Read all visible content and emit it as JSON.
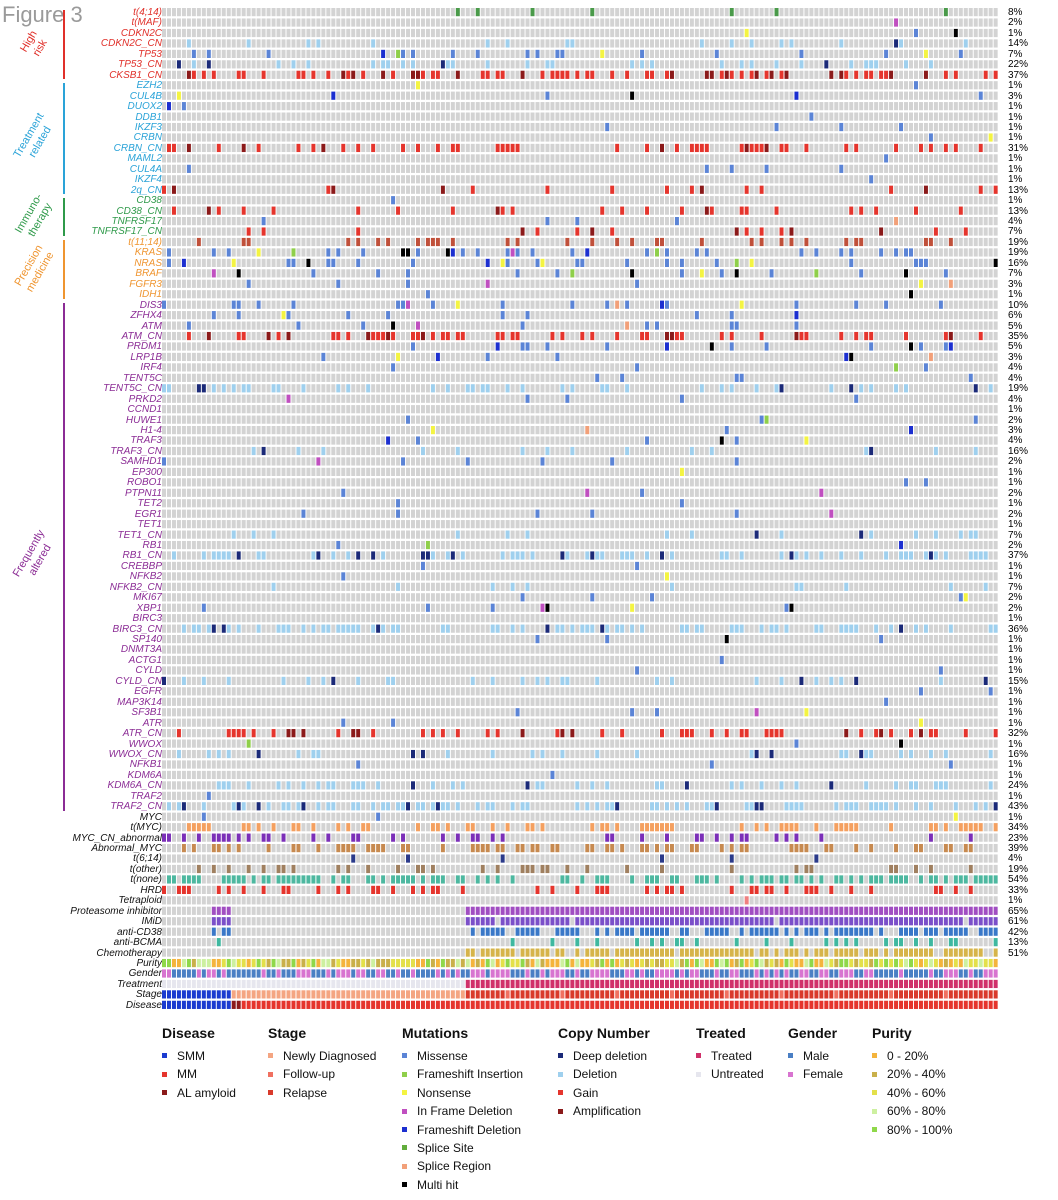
{
  "figure_title": "Figure 3",
  "colors": {
    "empty": "#d3d3d3",
    "missense": "#5b84d6",
    "frameshift_insertion": "#8fcf4a",
    "nonsense": "#f4f442",
    "in_frame_deletion": "#c04fc0",
    "frameshift_deletion": "#1c2fd0",
    "splice_site": "#62ad3c",
    "splice_region": "#f2a079",
    "multi_hit": "#000000",
    "deep_deletion": "#1b2a78",
    "deletion": "#9fd0ee",
    "gain": "#e5352d",
    "amplification": "#8b1a1a",
    "high_risk": "#e0302a",
    "treatment_related": "#2aa3d8",
    "immunotherapy": "#2f9a4a",
    "precision_medicine": "#ef9530",
    "frequently_altered": "#8b2c95",
    "other": "#111111"
  },
  "groups": [
    {
      "key": "high_risk",
      "label": "High risk"
    },
    {
      "key": "treatment_related",
      "label": "Treatment related"
    },
    {
      "key": "immunotherapy",
      "label": "Immuno- therapy"
    },
    {
      "key": "precision_medicine",
      "label": "Precision medicine"
    },
    {
      "key": "frequently_altered",
      "label": "Frequently altered"
    }
  ],
  "rows": [
    {
      "label": "t(4;14)",
      "pct": "8%",
      "group": "high_risk"
    },
    {
      "label": "t(MAF)",
      "pct": "2%",
      "group": "high_risk"
    },
    {
      "label": "CDKN2C",
      "pct": "1%",
      "group": "high_risk"
    },
    {
      "label": "CDKN2C_CN",
      "pct": "14%",
      "group": "high_risk"
    },
    {
      "label": "TP53",
      "pct": "7%",
      "group": "high_risk"
    },
    {
      "label": "TP53_CN",
      "pct": "22%",
      "group": "high_risk"
    },
    {
      "label": "CKSB1_CN",
      "pct": "37%",
      "group": "high_risk"
    },
    {
      "label": "EZH2",
      "pct": "1%",
      "group": "treatment_related"
    },
    {
      "label": "CUL4B",
      "pct": "3%",
      "group": "treatment_related"
    },
    {
      "label": "DUOX2",
      "pct": "1%",
      "group": "treatment_related"
    },
    {
      "label": "DDB1",
      "pct": "1%",
      "group": "treatment_related"
    },
    {
      "label": "IKZF3",
      "pct": "1%",
      "group": "treatment_related"
    },
    {
      "label": "CRBN",
      "pct": "1%",
      "group": "treatment_related"
    },
    {
      "label": "CRBN_CN",
      "pct": "31%",
      "group": "treatment_related"
    },
    {
      "label": "MAML2",
      "pct": "1%",
      "group": "treatment_related"
    },
    {
      "label": "CUL4A",
      "pct": "1%",
      "group": "treatment_related"
    },
    {
      "label": "IKZF4",
      "pct": "1%",
      "group": "treatment_related"
    },
    {
      "label": "2q_CN",
      "pct": "13%",
      "group": "treatment_related"
    },
    {
      "label": "CD38",
      "pct": "1%",
      "group": "immunotherapy"
    },
    {
      "label": "CD38_CN",
      "pct": "13%",
      "group": "immunotherapy"
    },
    {
      "label": "TNFRSF17",
      "pct": "4%",
      "group": "immunotherapy"
    },
    {
      "label": "TNFRSF17_CN",
      "pct": "7%",
      "group": "immunotherapy"
    },
    {
      "label": "t(11;14)",
      "pct": "19%",
      "group": "precision_medicine"
    },
    {
      "label": "KRAS",
      "pct": "19%",
      "group": "precision_medicine"
    },
    {
      "label": "NRAS",
      "pct": "16%",
      "group": "precision_medicine"
    },
    {
      "label": "BRAF",
      "pct": "7%",
      "group": "precision_medicine"
    },
    {
      "label": "FGFR3",
      "pct": "3%",
      "group": "precision_medicine"
    },
    {
      "label": "IDH1",
      "pct": "1%",
      "group": "precision_medicine"
    },
    {
      "label": "DIS3",
      "pct": "10%",
      "group": "frequently_altered"
    },
    {
      "label": "ZFHX4",
      "pct": "6%",
      "group": "frequently_altered"
    },
    {
      "label": "ATM",
      "pct": "5%",
      "group": "frequently_altered"
    },
    {
      "label": "ATM_CN",
      "pct": "35%",
      "group": "frequently_altered"
    },
    {
      "label": "PRDM1",
      "pct": "5%",
      "group": "frequently_altered"
    },
    {
      "label": "LRP1B",
      "pct": "3%",
      "group": "frequently_altered"
    },
    {
      "label": "IRF4",
      "pct": "4%",
      "group": "frequently_altered"
    },
    {
      "label": "TENT5C",
      "pct": "4%",
      "group": "frequently_altered"
    },
    {
      "label": "TENT5C_CN",
      "pct": "19%",
      "group": "frequently_altered"
    },
    {
      "label": "PRKD2",
      "pct": "4%",
      "group": "frequently_altered"
    },
    {
      "label": "CCND1",
      "pct": "1%",
      "group": "frequently_altered"
    },
    {
      "label": "HUWE1",
      "pct": "2%",
      "group": "frequently_altered"
    },
    {
      "label": "H1-4",
      "pct": "3%",
      "group": "frequently_altered"
    },
    {
      "label": "TRAF3",
      "pct": "4%",
      "group": "frequently_altered"
    },
    {
      "label": "TRAF3_CN",
      "pct": "16%",
      "group": "frequently_altered"
    },
    {
      "label": "SAMHD1",
      "pct": "2%",
      "group": "frequently_altered"
    },
    {
      "label": "EP300",
      "pct": "1%",
      "group": "frequently_altered"
    },
    {
      "label": "ROBO1",
      "pct": "1%",
      "group": "frequently_altered"
    },
    {
      "label": "PTPN11",
      "pct": "2%",
      "group": "frequently_altered"
    },
    {
      "label": "TET2",
      "pct": "1%",
      "group": "frequently_altered"
    },
    {
      "label": "EGR1",
      "pct": "2%",
      "group": "frequently_altered"
    },
    {
      "label": "TET1",
      "pct": "1%",
      "group": "frequently_altered"
    },
    {
      "label": "TET1_CN",
      "pct": "7%",
      "group": "frequently_altered"
    },
    {
      "label": "RB1",
      "pct": "2%",
      "group": "frequently_altered"
    },
    {
      "label": "RB1_CN",
      "pct": "37%",
      "group": "frequently_altered"
    },
    {
      "label": "CREBBP",
      "pct": "1%",
      "group": "frequently_altered"
    },
    {
      "label": "NFKB2",
      "pct": "1%",
      "group": "frequently_altered"
    },
    {
      "label": "NFKB2_CN",
      "pct": "7%",
      "group": "frequently_altered"
    },
    {
      "label": "MKI67",
      "pct": "2%",
      "group": "frequently_altered"
    },
    {
      "label": "XBP1",
      "pct": "2%",
      "group": "frequently_altered"
    },
    {
      "label": "BIRC3",
      "pct": "1%",
      "group": "frequently_altered"
    },
    {
      "label": "BIRC3_CN",
      "pct": "36%",
      "group": "frequently_altered"
    },
    {
      "label": "SP140",
      "pct": "1%",
      "group": "frequently_altered"
    },
    {
      "label": "DNMT3A",
      "pct": "1%",
      "group": "frequently_altered"
    },
    {
      "label": "ACTG1",
      "pct": "1%",
      "group": "frequently_altered"
    },
    {
      "label": "CYLD",
      "pct": "1%",
      "group": "frequently_altered"
    },
    {
      "label": "CYLD_CN",
      "pct": "15%",
      "group": "frequently_altered"
    },
    {
      "label": "EGFR",
      "pct": "1%",
      "group": "frequently_altered"
    },
    {
      "label": "MAP3K14",
      "pct": "1%",
      "group": "frequently_altered"
    },
    {
      "label": "SF3B1",
      "pct": "1%",
      "group": "frequently_altered"
    },
    {
      "label": "ATR",
      "pct": "1%",
      "group": "frequently_altered"
    },
    {
      "label": "ATR_CN",
      "pct": "32%",
      "group": "frequently_altered"
    },
    {
      "label": "WWOX",
      "pct": "1%",
      "group": "frequently_altered"
    },
    {
      "label": "WWOX_CN",
      "pct": "16%",
      "group": "frequently_altered"
    },
    {
      "label": "NFKB1",
      "pct": "1%",
      "group": "frequently_altered"
    },
    {
      "label": "KDM6A",
      "pct": "1%",
      "group": "frequently_altered"
    },
    {
      "label": "KDM6A_CN",
      "pct": "24%",
      "group": "frequently_altered"
    },
    {
      "label": "TRAF2",
      "pct": "1%",
      "group": "frequently_altered"
    },
    {
      "label": "TRAF2_CN",
      "pct": "43%",
      "group": "frequently_altered"
    },
    {
      "label": "MYC",
      "pct": "1%",
      "group": "other"
    },
    {
      "label": "t(MYC)",
      "pct": "34%",
      "group": "other"
    },
    {
      "label": "MYC_CN_abnormal",
      "pct": "23%",
      "group": "other"
    },
    {
      "label": "Abnormal_MYC",
      "pct": "39%",
      "group": "other"
    },
    {
      "label": "t(6;14)",
      "pct": "4%",
      "group": "other"
    },
    {
      "label": "t(other)",
      "pct": "19%",
      "group": "other"
    },
    {
      "label": "t(none)",
      "pct": "54%",
      "group": "other"
    },
    {
      "label": "HRD",
      "pct": "33%",
      "group": "other"
    },
    {
      "label": "Tetraploid",
      "pct": "1%",
      "group": "other"
    },
    {
      "label": "Proteasome inhibitor",
      "pct": "65%",
      "group": "other"
    },
    {
      "label": "IMiD",
      "pct": "61%",
      "group": "other"
    },
    {
      "label": "anti-CD38",
      "pct": "42%",
      "group": "other"
    },
    {
      "label": "anti-BCMA",
      "pct": "13%",
      "group": "other"
    },
    {
      "label": "Chemotherapy",
      "pct": "51%",
      "group": "other"
    },
    {
      "label": "Purity",
      "pct": "",
      "group": "other"
    },
    {
      "label": "Gender",
      "pct": "",
      "group": "other"
    },
    {
      "label": "Treatment",
      "pct": "",
      "group": "other"
    },
    {
      "label": "Stage",
      "pct": "",
      "group": "other"
    },
    {
      "label": "Disease",
      "pct": "",
      "group": "other"
    }
  ],
  "legends": [
    {
      "title": "Disease",
      "items": [
        {
          "label": "SMM",
          "color": "#1b3bd0"
        },
        {
          "label": "MM",
          "color": "#e5352d"
        },
        {
          "label": "AL amyloid",
          "color": "#8b1a1a"
        }
      ]
    },
    {
      "title": "Stage",
      "items": [
        {
          "label": "Newly Diagnosed",
          "color": "#f4a582"
        },
        {
          "label": "Follow-up",
          "color": "#f07060"
        },
        {
          "label": "Relapse",
          "color": "#d93a2b"
        }
      ]
    },
    {
      "title": "Mutations",
      "items": [
        {
          "label": "Missense",
          "color": "#5b84d6"
        },
        {
          "label": "Frameshift Insertion",
          "color": "#8fcf4a"
        },
        {
          "label": "Nonsense",
          "color": "#f4f442"
        },
        {
          "label": "In Frame Deletion",
          "color": "#c04fc0"
        },
        {
          "label": "Frameshift Deletion",
          "color": "#1c2fd0"
        },
        {
          "label": "Splice Site",
          "color": "#62ad3c"
        },
        {
          "label": "Splice Region",
          "color": "#f2a079"
        },
        {
          "label": "Multi hit",
          "color": "#000000"
        }
      ]
    },
    {
      "title": "Copy Number",
      "items": [
        {
          "label": "Deep deletion",
          "color": "#1b2a78"
        },
        {
          "label": "Deletion",
          "color": "#9fd0ee"
        },
        {
          "label": "Gain",
          "color": "#e5352d"
        },
        {
          "label": "Amplification",
          "color": "#8b1a1a"
        }
      ]
    },
    {
      "title": "Treated",
      "items": [
        {
          "label": "Treated",
          "color": "#d0306a"
        },
        {
          "label": "Untreated",
          "color": "#e6e6ee"
        }
      ]
    },
    {
      "title": "Gender",
      "items": [
        {
          "label": "Male",
          "color": "#4a7fc4"
        },
        {
          "label": "Female",
          "color": "#d874d0"
        }
      ]
    },
    {
      "title": "Purity",
      "items": [
        {
          "label": "0 - 20%",
          "color": "#f4b43c"
        },
        {
          "label": "20% - 40%",
          "color": "#c9b04a"
        },
        {
          "label": "40% - 60%",
          "color": "#e3e04a"
        },
        {
          "label": "60% - 80%",
          "color": "#cdf0a0"
        },
        {
          "label": "80% - 100%",
          "color": "#8fd84a"
        }
      ]
    }
  ]
}
